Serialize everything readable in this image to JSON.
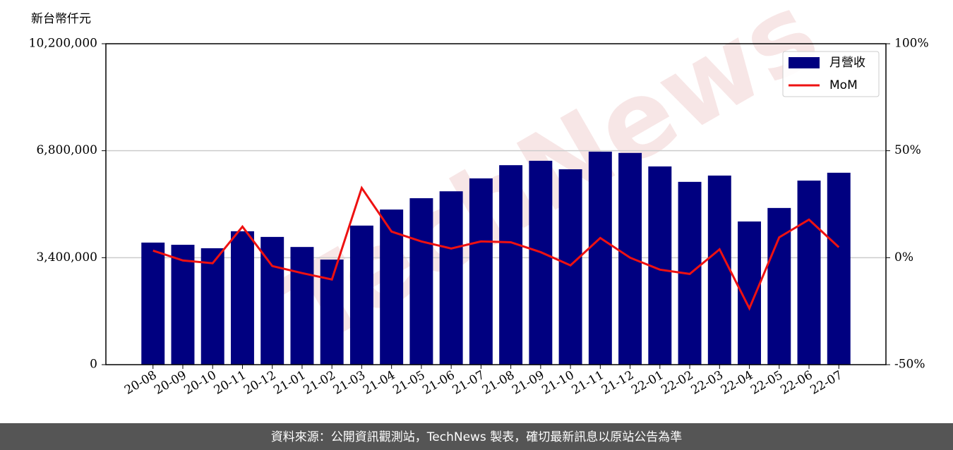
{
  "chart_data": {
    "type": "bar_line",
    "y_label": "新台幣仟元",
    "watermark": "TechNews",
    "footer": "資料來源：公開資訊觀測站，TechNews 製表，確切最新訊息以原站公告為準",
    "categories": [
      "20-08",
      "20-09",
      "20-10",
      "20-11",
      "20-12",
      "21-01",
      "21-02",
      "21-03",
      "21-04",
      "21-05",
      "21-06",
      "21-07",
      "21-08",
      "21-09",
      "21-10",
      "21-11",
      "21-12",
      "22-01",
      "22-02",
      "22-03",
      "22-04",
      "22-05",
      "22-06",
      "22-07"
    ],
    "series": [
      {
        "name": "月營收",
        "type": "bar",
        "color": "#000080",
        "values": [
          3880000,
          3810000,
          3700000,
          4240000,
          4060000,
          3740000,
          3340000,
          4420000,
          4930000,
          5290000,
          5510000,
          5920000,
          6340000,
          6480000,
          6210000,
          6770000,
          6730000,
          6300000,
          5810000,
          6010000,
          4550000,
          4980000,
          5850000,
          6100000
        ]
      },
      {
        "name": "MoM",
        "type": "line",
        "color": "#ee1111",
        "axis": "y2",
        "values": [
          3.3,
          -1.3,
          -2.6,
          14.5,
          -3.9,
          -7.2,
          -10.2,
          32.6,
          12.2,
          7.6,
          4.3,
          7.6,
          7.2,
          2.6,
          -3.6,
          9.2,
          0,
          -5.6,
          -7.6,
          3.9,
          -23.7,
          9.5,
          17.8,
          4.9
        ]
      }
    ],
    "ylim": [
      0,
      10200000
    ],
    "yticks": [
      0,
      {
        "value": 3400000,
        "label": "3,400,000"
      },
      {
        "value": 6800000,
        "label": "6,800,000"
      },
      {
        "value": 10200000,
        "label": "10,200,000"
      }
    ],
    "y2lim": [
      -50,
      100
    ],
    "y2ticks": [
      {
        "value": -50,
        "label": "-50%"
      },
      {
        "value": 0,
        "label": "0%"
      },
      {
        "value": 50,
        "label": "50%"
      },
      {
        "value": 100,
        "label": "100%"
      }
    ],
    "grid": true,
    "legend": "upper right"
  }
}
